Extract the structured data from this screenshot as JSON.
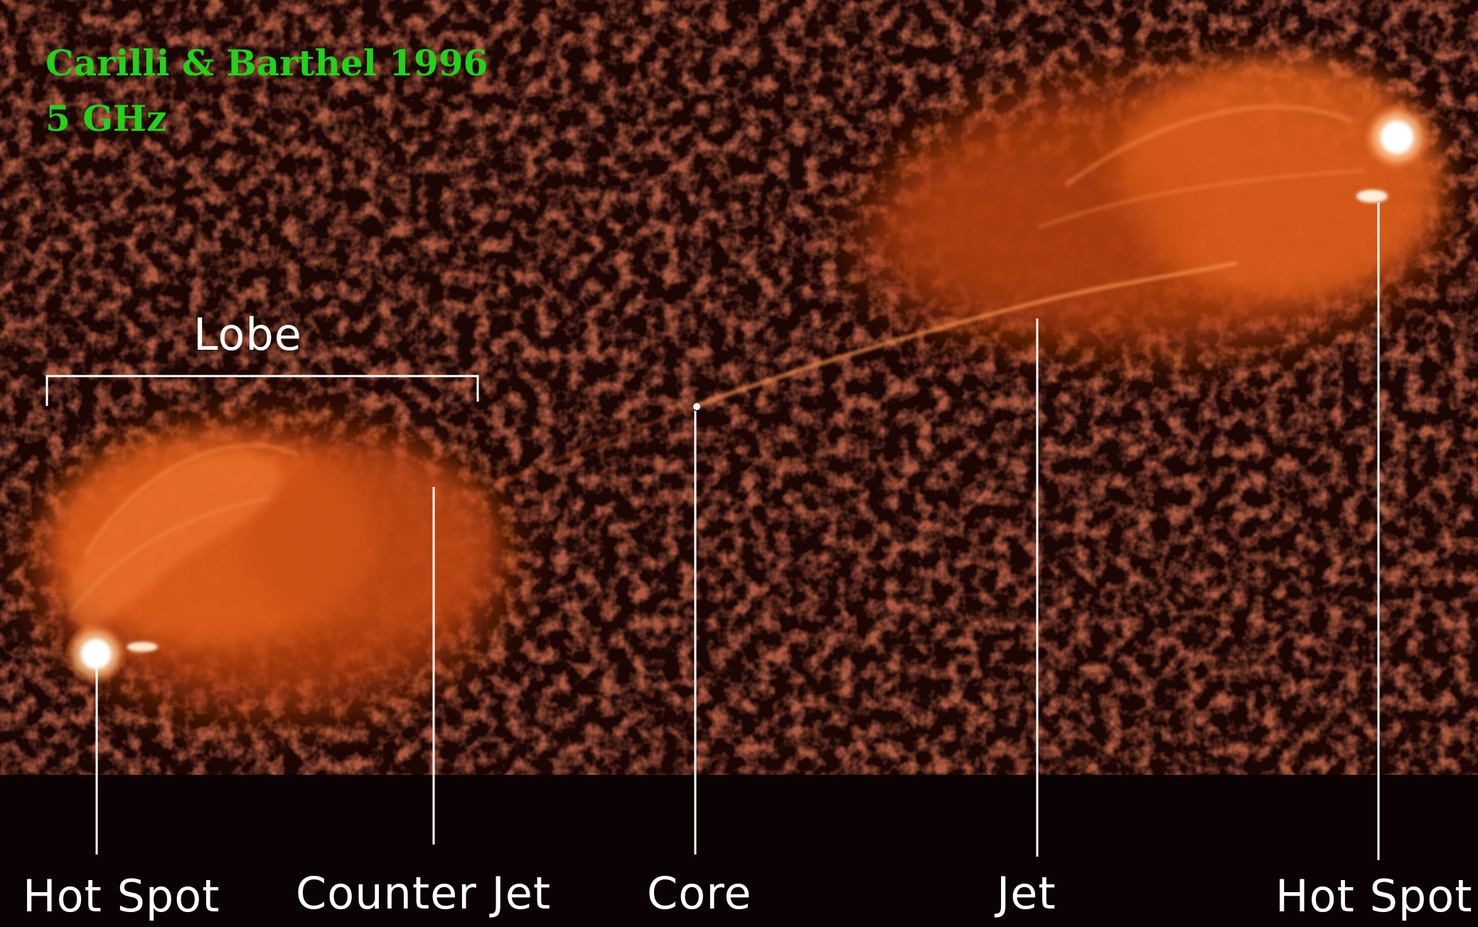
{
  "credit": {
    "citation": "Carilli & Barthel 1996",
    "frequency": "5 GHz"
  },
  "labels": {
    "lobe": "Lobe",
    "hot_spot_left": "Hot Spot",
    "counter_jet": "Counter Jet",
    "core": "Core",
    "jet": "Jet",
    "hot_spot_right": "Hot Spot"
  },
  "colors": {
    "background": "#1a0604",
    "footer_band": "#0a0203",
    "lobe_emission": "#e8631e",
    "hot_spot": "#ffffff",
    "credit_text": "#22d21b",
    "label_text": "#ffffff",
    "leader_line": "#ffffff"
  }
}
